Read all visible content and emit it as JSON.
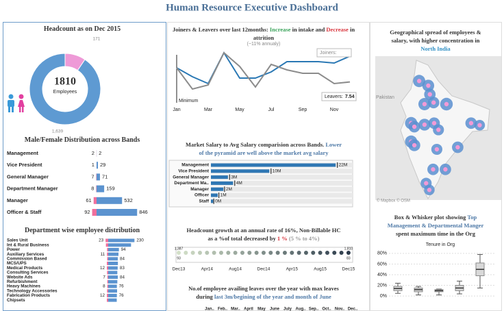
{
  "title": "Human Resource Executive Dashboard",
  "chart_data": [
    {
      "type": "donut",
      "title": [
        [
          "Headcount as on Dec 2015"
        ]
      ],
      "total": 1810,
      "total_label": "Employees",
      "values": [
        171,
        1639
      ],
      "value_labels": [
        "171",
        "1,639"
      ],
      "colors": [
        "#ee9ad7",
        "#5e9ad2"
      ]
    },
    {
      "type": "bar",
      "title": [
        [
          "Male/Female Distribution across Bands"
        ]
      ],
      "categories": [
        "Management",
        "Vice President",
        "General Manager",
        "Department Manager",
        "Manager",
        "Officer & Staff"
      ],
      "series": [
        {
          "color": "#ef6f9c",
          "values": [
            2,
            1,
            7,
            8,
            61,
            92
          ]
        },
        {
          "color": "#5b93cf",
          "values": [
            2,
            29,
            71,
            159,
            532,
            846
          ]
        }
      ],
      "xlim": [
        0,
        900
      ]
    },
    {
      "type": "bar",
      "title": [
        [
          "Department wise employee distribution"
        ]
      ],
      "categories": [
        "Sales Unit",
        "Int & Rural Business",
        "Power",
        "Auxiliary Services",
        "Commission Based",
        "MCS/UPS",
        "Medical Products",
        "Consulting Services",
        "Website Ads",
        "Refurbishment",
        "Heavy Machines",
        "Technology Accessories",
        "Fabrication Products",
        "Chipsets"
      ],
      "series": [
        {
          "color": "#ef6f9c",
          "values": [
            23,
            20,
            10,
            11,
            9,
            12,
            12,
            10,
            7,
            8,
            8,
            10,
            12,
            12
          ],
          "value_labels": [
            "23",
            null,
            null,
            "11",
            null,
            null,
            "12",
            null,
            "7",
            null,
            "8",
            null,
            "12",
            null
          ]
        },
        {
          "color": "#5b93cf",
          "values": [
            230,
            200,
            94,
            90,
            84,
            85,
            83,
            80,
            84,
            80,
            76,
            78,
            76,
            75
          ],
          "value_labels": [
            "230",
            null,
            "94",
            null,
            "84",
            null,
            "83",
            null,
            "84",
            null,
            "76",
            null,
            "76",
            null
          ]
        }
      ],
      "xlim": [
        0,
        300
      ]
    },
    {
      "type": "line",
      "title": [
        [
          "Joiners & Leavers over last 12months: ",
          {
            "text": "Increase",
            "color": "#3aa35a"
          },
          " in intake and ",
          {
            "text": "Decrease",
            "color": "#d9363e"
          },
          " in"
        ],
        [
          "attrition"
        ]
      ],
      "subtitle": "(~11% annualy)",
      "categories": [
        "Jan",
        null,
        "Mar",
        null,
        "May",
        null,
        "Jul",
        null,
        "Sep",
        null,
        "Nov",
        null
      ],
      "series": [
        {
          "color": "#2a78b4",
          "values": [
            9.6,
            8.3,
            7.3,
            11.8,
            8.1,
            8.1,
            9.0,
            10.5,
            10.5,
            10.5,
            10.3,
            11.3
          ]
        },
        {
          "color": "#8c8c8c",
          "values": [
            9.6,
            6.5,
            7.1,
            11.8,
            9.8,
            6.8,
            10.1,
            9.3,
            8.8,
            8.8,
            7.3,
            7.54
          ]
        }
      ],
      "ylim": [
        4,
        13
      ],
      "annotations": [
        "Minimum",
        "Joiners:",
        "Leavers:"
      ]
    },
    {
      "type": "bullet",
      "title": [
        [
          "Market Salary to Avg Salary comparision across Bands. ",
          {
            "text": "Lower",
            "color": "#4e79a7"
          }
        ],
        [
          {
            "text": "of the pyramid are well above the market avg salary",
            "color": "#4e79a7"
          }
        ]
      ],
      "categories": [
        "Management",
        "Vice President",
        "General Manager",
        "Department Ma..",
        "Manager",
        "Officer",
        "Staff"
      ],
      "series": [
        {
          "color": "#2f77b4",
          "values": [
            22,
            10.3,
            3,
            3.9,
            2.2,
            1.2,
            0.4
          ],
          "value_labels": [
            "22M",
            "10M",
            "3M",
            "4M",
            "2M",
            "1M",
            "0M"
          ]
        },
        {
          "color": "#333333",
          "values": [
            22.3,
            10.6,
            3.3,
            4.2,
            2.4,
            1.4,
            0.5
          ]
        }
      ],
      "xlim": [
        0,
        25
      ]
    },
    {
      "type": "strip",
      "title": [
        [
          "Headcount growth at an annual rate of 16%, Non-Billable HC"
        ],
        [
          "as a %of total decreased by ",
          {
            "text": "1 %",
            "color": "#d9363e"
          },
          {
            "text": " (5 % to 4%)",
            "color": "#999999"
          }
        ]
      ],
      "categories": [
        "Dec13",
        null,
        null,
        null,
        "Apr14",
        null,
        null,
        null,
        "Aug14",
        null,
        null,
        null,
        "Dec14",
        null,
        null,
        null,
        "Apr15",
        null,
        null,
        null,
        "Aug15",
        null,
        null,
        null,
        "Dec15"
      ],
      "series": [
        {
          "values": [
            1387,
            1402,
            1420,
            1437,
            1455,
            1473,
            1490,
            1508,
            1525,
            1543,
            1560,
            1578,
            1596,
            1613,
            1631,
            1648,
            1666,
            1684,
            1701,
            1719,
            1736,
            1754,
            1772,
            1790,
            1810
          ],
          "value_labels": [
            "1,387",
            null,
            null,
            null,
            null,
            null,
            null,
            null,
            null,
            null,
            null,
            null,
            null,
            null,
            null,
            null,
            null,
            null,
            null,
            null,
            null,
            null,
            null,
            null,
            "1,810"
          ],
          "colors": [
            "#d3e0c8",
            "#2b3a4a"
          ]
        },
        {
          "values": [
            93,
            null,
            null,
            null,
            null,
            null,
            null,
            null,
            null,
            null,
            null,
            null,
            null,
            null,
            null,
            null,
            null,
            null,
            null,
            null,
            null,
            null,
            null,
            null,
            83
          ]
        }
      ]
    },
    {
      "type": "column",
      "title": [
        [
          "No.of employee availing leaves over the year with max leaves"
        ],
        [
          "during ",
          {
            "text": "last 3m/begining of the year and month of June",
            "color": "#4e79a7"
          }
        ]
      ],
      "categories": [
        "Jan..",
        "Feb..",
        "Mar..",
        "April",
        "May",
        "June",
        "July",
        "Aug..",
        "Sep..",
        "Oct..",
        "Nov..",
        "Dec.."
      ]
    },
    {
      "type": "map",
      "title": [
        [
          "Geographical spread of employees &"
        ],
        [
          "salary, with higher concentration in"
        ],
        [
          {
            "text": "North India",
            "color": "#2f8fc4"
          }
        ]
      ],
      "annotations": [
        "Pakistan",
        "© Mapbox © OSM"
      ],
      "x": [
        76.2,
        77.9,
        78.2,
        77.2,
        78.9,
        81.3,
        74.7,
        75.3,
        77.2,
        79.0,
        79.8,
        85.9,
        87.5,
        74.7,
        75.3,
        79.5,
        83.4,
        78.8,
        81.1,
        77.5,
        78.1
      ],
      "y": [
        30.9,
        30.0,
        28.3,
        26.4,
        26.7,
        26.4,
        22.7,
        22.0,
        22.4,
        22.7,
        21.4,
        22.7,
        22.3,
        19.1,
        18.4,
        17.6,
        18.0,
        13.7,
        13.7,
        11.0,
        9.7
      ],
      "sizes": [
        80,
        75,
        70,
        80,
        70,
        85,
        80,
        70,
        75,
        70,
        65,
        70,
        60,
        80,
        75,
        65,
        70,
        70,
        70,
        65,
        60
      ],
      "xlim": [
        68,
        90
      ],
      "ylim": [
        8,
        36
      ],
      "color": "#5b8fd0"
    },
    {
      "type": "box",
      "title": [
        [
          "Box & Whisker plot showing ",
          {
            "text": "Top",
            "color": "#4e79a7"
          }
        ],
        [
          {
            "text": "Management & Departmental Manger",
            "color": "#4e79a7"
          }
        ],
        [
          "spent maximum time in the Org"
        ]
      ],
      "subtitle": "Tenure in Org",
      "min": [
        5,
        2,
        2,
        4,
        15
      ],
      "q1": [
        10,
        8,
        8,
        10,
        38
      ],
      "median": [
        14,
        12,
        10,
        15,
        50
      ],
      "q3": [
        18,
        15,
        12,
        20,
        62
      ],
      "max": [
        24,
        18,
        13,
        28,
        78
      ],
      "ylim": [
        -5,
        85
      ],
      "yticks": [
        {
          "value": 0,
          "label": "0%"
        },
        {
          "value": 20,
          "label": "20%"
        },
        {
          "value": 40,
          "label": "40%"
        },
        {
          "value": 60,
          "label": "60%"
        },
        {
          "value": 80,
          "label": "80%"
        }
      ],
      "grid": true
    }
  ]
}
